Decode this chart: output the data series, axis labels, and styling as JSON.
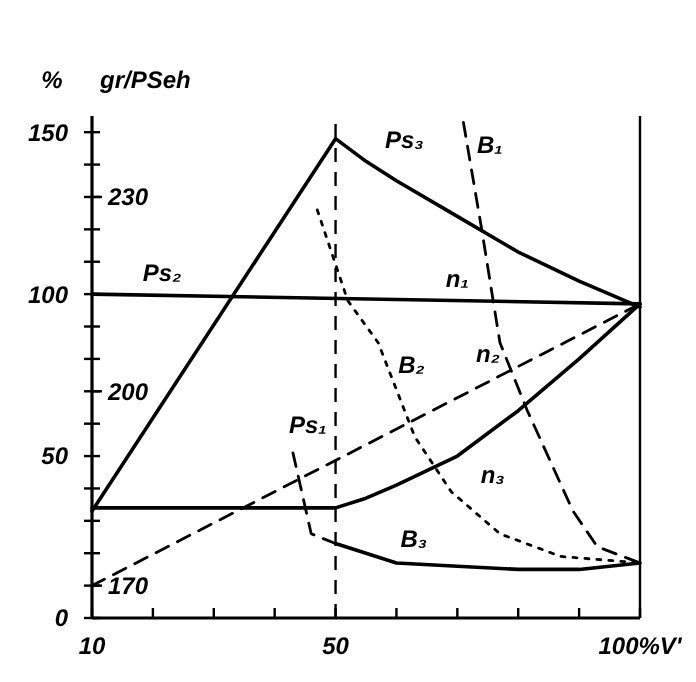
{
  "chart_data": {
    "type": "line",
    "ylabel": "%",
    "y2label": "gr/PSeh",
    "xlim": [
      10,
      100
    ],
    "xticks": [
      10,
      {
        "value": 20,
        "label": null
      },
      {
        "value": 30,
        "label": null
      },
      {
        "value": 40,
        "label": null
      },
      50,
      {
        "value": 60,
        "label": null
      },
      {
        "value": 70,
        "label": null
      },
      {
        "value": 80,
        "label": null
      },
      {
        "value": 90,
        "label": null
      },
      {
        "value": 100,
        "label": "100%V'"
      }
    ],
    "ylim": [
      0,
      155
    ],
    "yticks": [
      0,
      {
        "value": 10,
        "label": null
      },
      {
        "value": 20,
        "label": null
      },
      {
        "value": 30,
        "label": null
      },
      {
        "value": 40,
        "label": null
      },
      50,
      {
        "value": 60,
        "label": null
      },
      {
        "value": 70,
        "label": null
      },
      {
        "value": 80,
        "label": null
      },
      {
        "value": 90,
        "label": null
      },
      100,
      {
        "value": 110,
        "label": null
      },
      {
        "value": 120,
        "label": null
      },
      {
        "value": 130,
        "label": null
      },
      {
        "value": 140,
        "label": null
      },
      150
    ],
    "y2lim": [
      165,
      242.5
    ],
    "y2ticks": [
      170,
      200,
      230
    ],
    "ref_lines": [
      {
        "axis": "x",
        "value": 50,
        "label": null,
        "line_style": "dashed",
        "color": "#000000"
      },
      {
        "axis": "x",
        "value": 100,
        "label": null,
        "line_style": "solid",
        "color": "#000000"
      }
    ],
    "annotations": [
      {
        "text": "n₁",
        "x": 70,
        "y": 98
      }
    ],
    "series": [
      {
        "name": "Ps₃",
        "color": "#000000",
        "line_style": "solid",
        "x": [
          10,
          50,
          55,
          60,
          70,
          80,
          90,
          100
        ],
        "values": [
          33,
          148,
          141,
          135,
          124,
          113,
          104,
          96
        ]
      },
      {
        "name": "Ps₂",
        "color": "#000000",
        "line_style": "solid",
        "x": [
          10,
          100
        ],
        "values": [
          100,
          97
        ]
      },
      {
        "name": "B₁",
        "color": "#000000",
        "line_style": "dashed",
        "x": [
          71,
          74,
          77,
          81.5,
          89,
          93,
          100
        ],
        "values": [
          153,
          120,
          85,
          64,
          33,
          22,
          17
        ]
      },
      {
        "name": "B₂",
        "color": "#000000",
        "line_style": "dotted",
        "x": [
          47,
          52,
          57,
          63,
          69,
          77,
          87,
          100
        ],
        "values": [
          126,
          98,
          85,
          56,
          39,
          26,
          19,
          17
        ]
      },
      {
        "name": "n₂",
        "color": "#000000",
        "line_style": "dashed",
        "x": [
          10,
          100
        ],
        "values": [
          10,
          97
        ]
      },
      {
        "name": "n₃",
        "color": "#000000",
        "line_style": "solid",
        "x": [
          10,
          50,
          55,
          60,
          70,
          80,
          90,
          100
        ],
        "values": [
          34,
          34,
          37,
          41,
          50,
          64,
          80,
          97
        ]
      },
      {
        "name": "Ps₁",
        "color": "#000000",
        "line_style": "dashed",
        "x": [
          43,
          46,
          50
        ],
        "values": [
          51,
          26,
          23
        ]
      },
      {
        "name": "B₃",
        "color": "#000000",
        "line_style": "solid",
        "x": [
          50,
          55,
          60,
          70,
          80,
          90,
          100
        ],
        "values": [
          23,
          20,
          17,
          16,
          15,
          15,
          17
        ]
      }
    ]
  }
}
